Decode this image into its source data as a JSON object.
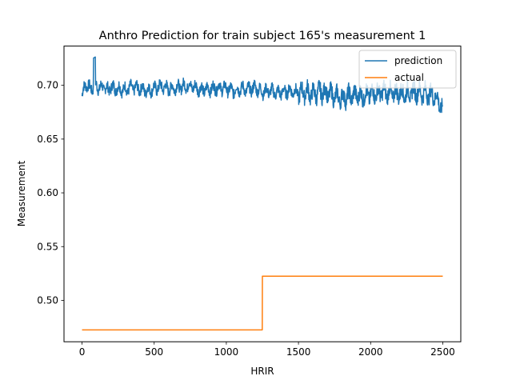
{
  "chart_data": {
    "type": "line",
    "title": "Anthro Prediction for train subject 165's measurement 1",
    "xlabel": "HRIR",
    "ylabel": "Measurement",
    "xlim": [
      -125,
      2625
    ],
    "ylim": [
      0.4615,
      0.7365
    ],
    "xticks": [
      0,
      500,
      1000,
      1500,
      2000,
      2500
    ],
    "xtick_labels": [
      "0",
      "500",
      "1000",
      "1500",
      "2000",
      "2500"
    ],
    "yticks": [
      0.5,
      0.55,
      0.6,
      0.65,
      0.7
    ],
    "ytick_labels": [
      "0.50",
      "0.55",
      "0.60",
      "0.65",
      "0.70"
    ],
    "grid": false,
    "legend_position": "top-right",
    "series": [
      {
        "name": "prediction",
        "color": "#1f77b4",
        "x": [
          0,
          25,
          50,
          75,
          100,
          125,
          150,
          175,
          200,
          250,
          300,
          350,
          400,
          450,
          500,
          550,
          600,
          650,
          700,
          750,
          800,
          850,
          900,
          950,
          1000,
          1050,
          1100,
          1150,
          1200,
          1250,
          1300,
          1350,
          1400,
          1450,
          1500,
          1550,
          1600,
          1650,
          1700,
          1750,
          1800,
          1850,
          1900,
          1950,
          2000,
          2050,
          2100,
          2150,
          2200,
          2250,
          2300,
          2350,
          2400,
          2450,
          2500
        ],
        "values": [
          0.69,
          0.702,
          0.697,
          0.698,
          0.7,
          0.697,
          0.699,
          0.696,
          0.698,
          0.697,
          0.696,
          0.698,
          0.697,
          0.695,
          0.697,
          0.699,
          0.697,
          0.698,
          0.699,
          0.7,
          0.697,
          0.696,
          0.697,
          0.698,
          0.697,
          0.695,
          0.697,
          0.696,
          0.698,
          0.694,
          0.695,
          0.693,
          0.694,
          0.695,
          0.693,
          0.694,
          0.692,
          0.694,
          0.693,
          0.69,
          0.688,
          0.69,
          0.691,
          0.69,
          0.692,
          0.693,
          0.694,
          0.692,
          0.693,
          0.692,
          0.694,
          0.693,
          0.692,
          0.69,
          0.677
        ]
      },
      {
        "name": "actual",
        "color": "#ff7f0e",
        "x": [
          0,
          1249,
          1250,
          2500
        ],
        "values": [
          0.4725,
          0.4725,
          0.5225,
          0.5225
        ]
      }
    ]
  }
}
